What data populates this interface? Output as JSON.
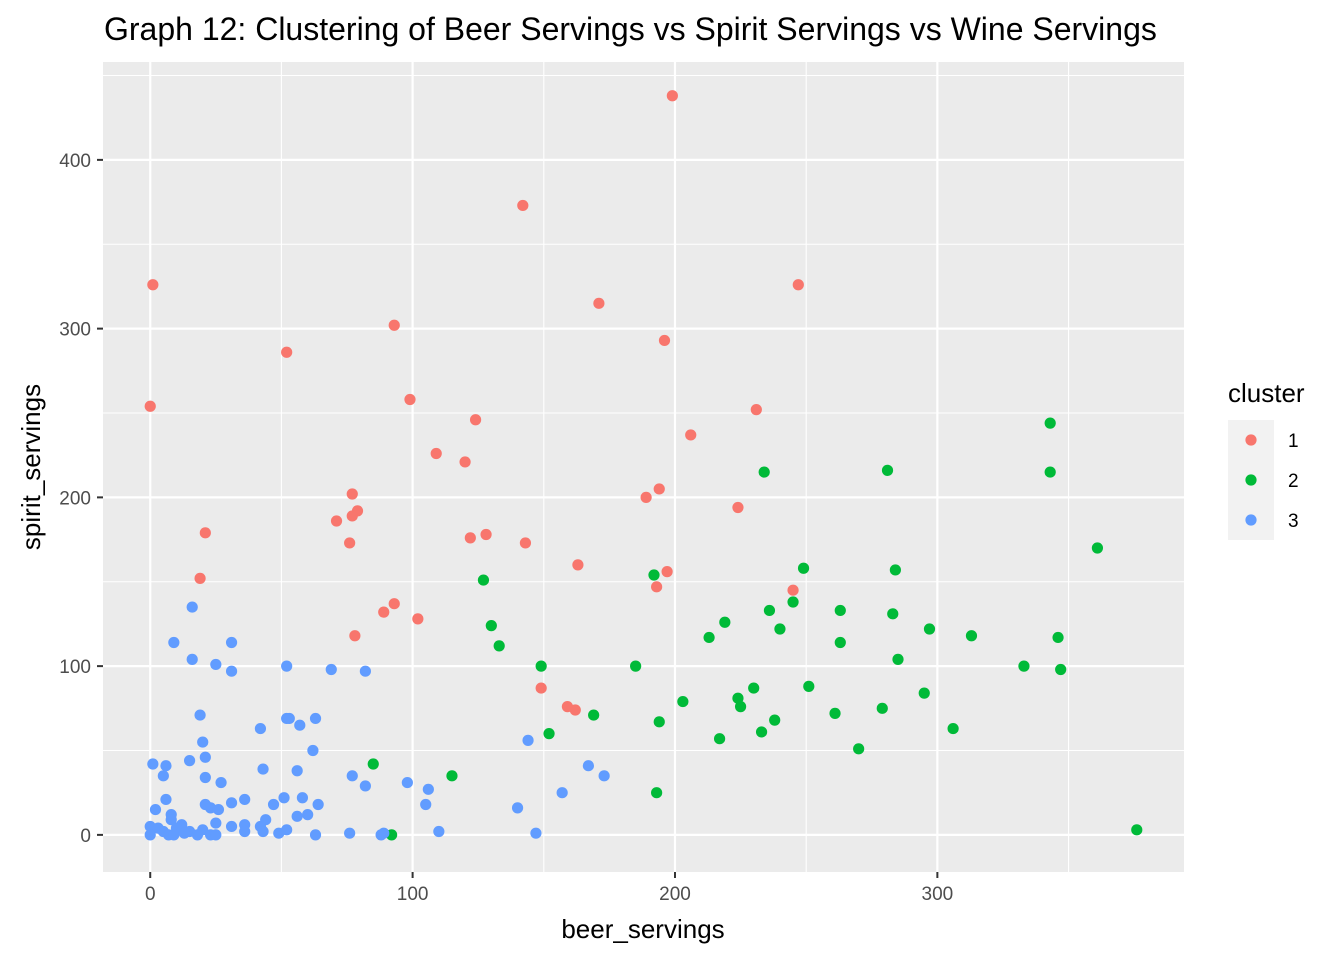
{
  "chart_data": {
    "type": "scatter",
    "title": "Graph 12: Clustering of Beer Servings vs Spirit Servings vs Wine Servings",
    "xlabel": "beer_servings",
    "ylabel": "spirit_servings",
    "xlim": [
      -18,
      394
    ],
    "ylim": [
      -22,
      458
    ],
    "xticks": [
      0,
      100,
      200,
      300
    ],
    "yticks": [
      0,
      100,
      200,
      300,
      400
    ],
    "grid": true,
    "panel_background": "#ebebeb",
    "legend": {
      "title": "cluster",
      "position": "right",
      "key_background": "#f2f2f2"
    },
    "series": [
      {
        "name": "1",
        "color": "#f8766d",
        "points": [
          [
            199,
            438
          ],
          [
            142,
            373
          ],
          [
            247,
            326
          ],
          [
            1,
            326
          ],
          [
            171,
            315
          ],
          [
            93,
            302
          ],
          [
            52,
            286
          ],
          [
            196,
            293
          ],
          [
            0,
            254
          ],
          [
            99,
            258
          ],
          [
            231,
            252
          ],
          [
            124,
            246
          ],
          [
            206,
            237
          ],
          [
            109,
            226
          ],
          [
            120,
            221
          ],
          [
            194,
            205
          ],
          [
            77,
            202
          ],
          [
            189,
            200
          ],
          [
            224,
            194
          ],
          [
            79,
            192
          ],
          [
            77,
            189
          ],
          [
            71,
            186
          ],
          [
            21,
            179
          ],
          [
            128,
            178
          ],
          [
            122,
            176
          ],
          [
            76,
            173
          ],
          [
            143,
            173
          ],
          [
            163,
            160
          ],
          [
            197,
            156
          ],
          [
            19,
            152
          ],
          [
            193,
            147
          ],
          [
            245,
            145
          ],
          [
            93,
            137
          ],
          [
            89,
            132
          ],
          [
            102,
            128
          ],
          [
            78,
            118
          ],
          [
            149,
            87
          ],
          [
            159,
            76
          ],
          [
            162,
            74
          ]
        ]
      },
      {
        "name": "2",
        "color": "#00ba38",
        "points": [
          [
            343,
            244
          ],
          [
            343,
            215
          ],
          [
            281,
            216
          ],
          [
            234,
            215
          ],
          [
            361,
            170
          ],
          [
            192,
            154
          ],
          [
            249,
            158
          ],
          [
            284,
            157
          ],
          [
            127,
            151
          ],
          [
            245,
            138
          ],
          [
            263,
            133
          ],
          [
            236,
            133
          ],
          [
            283,
            131
          ],
          [
            130,
            124
          ],
          [
            219,
            126
          ],
          [
            240,
            122
          ],
          [
            297,
            122
          ],
          [
            313,
            118
          ],
          [
            346,
            117
          ],
          [
            213,
            117
          ],
          [
            263,
            114
          ],
          [
            133,
            112
          ],
          [
            285,
            104
          ],
          [
            149,
            100
          ],
          [
            185,
            100
          ],
          [
            333,
            100
          ],
          [
            347,
            98
          ],
          [
            230,
            87
          ],
          [
            251,
            88
          ],
          [
            295,
            84
          ],
          [
            203,
            79
          ],
          [
            224,
            81
          ],
          [
            225,
            76
          ],
          [
            279,
            75
          ],
          [
            261,
            72
          ],
          [
            169,
            71
          ],
          [
            194,
            67
          ],
          [
            238,
            68
          ],
          [
            306,
            63
          ],
          [
            152,
            60
          ],
          [
            233,
            61
          ],
          [
            217,
            57
          ],
          [
            270,
            51
          ],
          [
            85,
            42
          ],
          [
            115,
            35
          ],
          [
            193,
            25
          ],
          [
            92,
            0
          ],
          [
            376,
            3
          ]
        ]
      },
      {
        "name": "3",
        "color": "#619cff",
        "points": [
          [
            16,
            135
          ],
          [
            9,
            114
          ],
          [
            31,
            114
          ],
          [
            16,
            104
          ],
          [
            25,
            101
          ],
          [
            52,
            100
          ],
          [
            31,
            97
          ],
          [
            69,
            98
          ],
          [
            82,
            97
          ],
          [
            19,
            71
          ],
          [
            52,
            69
          ],
          [
            53,
            69
          ],
          [
            63,
            69
          ],
          [
            57,
            65
          ],
          [
            42,
            63
          ],
          [
            20,
            55
          ],
          [
            144,
            56
          ],
          [
            62,
            50
          ],
          [
            21,
            46
          ],
          [
            15,
            44
          ],
          [
            1,
            42
          ],
          [
            6,
            41
          ],
          [
            43,
            39
          ],
          [
            56,
            38
          ],
          [
            167,
            41
          ],
          [
            5,
            35
          ],
          [
            21,
            34
          ],
          [
            77,
            35
          ],
          [
            173,
            35
          ],
          [
            27,
            31
          ],
          [
            98,
            31
          ],
          [
            82,
            29
          ],
          [
            106,
            27
          ],
          [
            157,
            25
          ],
          [
            6,
            21
          ],
          [
            31,
            19
          ],
          [
            36,
            21
          ],
          [
            47,
            18
          ],
          [
            51,
            22
          ],
          [
            58,
            22
          ],
          [
            64,
            18
          ],
          [
            21,
            18
          ],
          [
            23,
            16
          ],
          [
            2,
            15
          ],
          [
            26,
            15
          ],
          [
            105,
            18
          ],
          [
            140,
            16
          ],
          [
            8,
            12
          ],
          [
            56,
            11
          ],
          [
            60,
            12
          ],
          [
            8,
            9
          ],
          [
            44,
            9
          ],
          [
            25,
            7
          ],
          [
            12,
            6
          ],
          [
            0,
            5
          ],
          [
            31,
            5
          ],
          [
            36,
            6
          ],
          [
            42,
            5
          ],
          [
            3,
            4
          ],
          [
            10,
            4
          ],
          [
            20,
            3
          ],
          [
            52,
            3
          ],
          [
            110,
            2
          ],
          [
            89,
            1
          ],
          [
            63,
            0
          ],
          [
            76,
            1
          ],
          [
            147,
            1
          ],
          [
            5,
            2
          ],
          [
            15,
            2
          ],
          [
            36,
            2
          ],
          [
            43,
            2
          ],
          [
            0,
            0
          ],
          [
            7,
            0
          ],
          [
            9,
            0
          ],
          [
            13,
            1
          ],
          [
            18,
            0
          ],
          [
            23,
            0
          ],
          [
            25,
            0
          ],
          [
            49,
            1
          ],
          [
            88,
            0
          ]
        ]
      }
    ]
  }
}
